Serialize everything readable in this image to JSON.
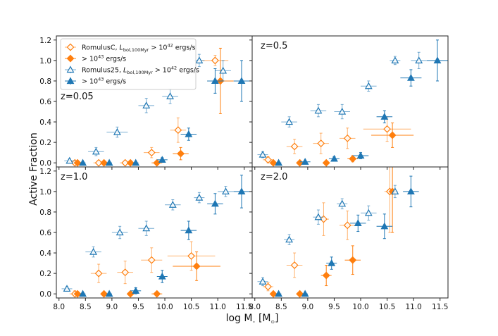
{
  "chart_data": {
    "type": "scatter",
    "ylabel": "Active Fraction",
    "xlabel": "log M",
    "xlabel_sub": "⋆",
    "xlabel_unit_open": " [M",
    "xlabel_unit_sub": "⊙",
    "xlabel_unit_close": "]",
    "xlim": [
      7.95,
      11.65
    ],
    "ylim": [
      -0.04,
      1.24
    ],
    "xticks": [
      "8.0",
      "8.5",
      "9.0",
      "9.5",
      "10.0",
      "10.5",
      "11.0",
      "11.5"
    ],
    "xtick_values": [
      8.0,
      8.5,
      9.0,
      9.5,
      10.0,
      10.5,
      11.0,
      11.5
    ],
    "yticks": [
      "0.0",
      "0.2",
      "0.4",
      "0.6",
      "0.8",
      "1.0",
      "1.2"
    ],
    "ytick_values": [
      0.0,
      0.2,
      0.4,
      0.6,
      0.8,
      1.0,
      1.2
    ],
    "colors": {
      "romulusc": "#ff7f0e",
      "romulus25": "#1f77b4"
    },
    "legend": [
      {
        "series": "romulusc_42",
        "text": "RomulusC, ",
        "math": "L",
        "math_sub": "bol,100Myr",
        "cond": " > 10",
        "cond_sup": "42",
        "tail": " ergs/s"
      },
      {
        "series": "romulusc_43",
        "text": "",
        "math": "",
        "math_sub": "",
        "cond": "> 10",
        "cond_sup": "43",
        "tail": " ergs/s"
      },
      {
        "series": "romulus25_42",
        "text": "Romulus25, ",
        "math": "L",
        "math_sub": "bol,100Myr",
        "cond": " > 10",
        "cond_sup": "42",
        "tail": " ergs/s"
      },
      {
        "series": "romulus25_43",
        "text": "",
        "math": "",
        "math_sub": "",
        "cond": "> 10",
        "cond_sup": "43",
        "tail": " ergs/s"
      }
    ],
    "panels": [
      {
        "label": "z=0.05",
        "series": {
          "romulusc_42": [
            {
              "x": 8.3,
              "y": 0.0,
              "xerr": 0.1,
              "yerr": 0.02
            },
            {
              "x": 8.75,
              "y": 0.0,
              "xerr": 0.1,
              "yerr": 0.02
            },
            {
              "x": 9.25,
              "y": 0.0,
              "xerr": 0.1,
              "yerr": 0.02
            },
            {
              "x": 9.75,
              "y": 0.1,
              "xerr": 0.15,
              "yerr": 0.05
            },
            {
              "x": 10.25,
              "y": 0.32,
              "xerr": 0.15,
              "yerr": 0.12
            },
            {
              "x": 10.95,
              "y": 1.0,
              "xerr": 0.25,
              "yerr": 0.05
            }
          ],
          "romulusc_43": [
            {
              "x": 8.35,
              "y": 0.0,
              "xerr": 0.05,
              "yerr": 0.01
            },
            {
              "x": 8.85,
              "y": 0.0,
              "xerr": 0.05,
              "yerr": 0.01
            },
            {
              "x": 9.35,
              "y": 0.0,
              "xerr": 0.05,
              "yerr": 0.01
            },
            {
              "x": 9.85,
              "y": 0.0,
              "xerr": 0.1,
              "yerr": 0.01
            },
            {
              "x": 10.3,
              "y": 0.09,
              "xerr": 0.15,
              "yerr": 0.06
            },
            {
              "x": 11.05,
              "y": 0.8,
              "xerr": 0.25,
              "yerr": 0.32
            }
          ],
          "romulus25_42": [
            {
              "x": 8.2,
              "y": 0.02,
              "xerr": 0.1,
              "yerr": 0.02
            },
            {
              "x": 8.7,
              "y": 0.11,
              "xerr": 0.15,
              "yerr": 0.04
            },
            {
              "x": 9.1,
              "y": 0.3,
              "xerr": 0.2,
              "yerr": 0.05
            },
            {
              "x": 9.65,
              "y": 0.56,
              "xerr": 0.15,
              "yerr": 0.07
            },
            {
              "x": 10.1,
              "y": 0.65,
              "xerr": 0.15,
              "yerr": 0.07
            },
            {
              "x": 10.65,
              "y": 1.0,
              "xerr": 0.1,
              "yerr": 0.06
            },
            {
              "x": 11.1,
              "y": 0.9,
              "xerr": 0.15,
              "yerr": 0.1
            }
          ],
          "romulus25_43": [
            {
              "x": 8.45,
              "y": 0.0,
              "xerr": 0.05,
              "yerr": 0.01
            },
            {
              "x": 8.95,
              "y": 0.0,
              "xerr": 0.05,
              "yerr": 0.01
            },
            {
              "x": 9.45,
              "y": 0.0,
              "xerr": 0.05,
              "yerr": 0.01
            },
            {
              "x": 9.95,
              "y": 0.03,
              "xerr": 0.1,
              "yerr": 0.02
            },
            {
              "x": 10.45,
              "y": 0.28,
              "xerr": 0.15,
              "yerr": 0.06
            },
            {
              "x": 10.95,
              "y": 0.8,
              "xerr": 0.15,
              "yerr": 0.12
            },
            {
              "x": 11.45,
              "y": 0.8,
              "xerr": 0.15,
              "yerr": 0.2
            }
          ]
        }
      },
      {
        "label": "z=0.5",
        "series": {
          "romulusc_42": [
            {
              "x": 8.25,
              "y": 0.03,
              "xerr": 0.1,
              "yerr": 0.03
            },
            {
              "x": 8.75,
              "y": 0.16,
              "xerr": 0.15,
              "yerr": 0.07
            },
            {
              "x": 9.25,
              "y": 0.19,
              "xerr": 0.15,
              "yerr": 0.1
            },
            {
              "x": 9.75,
              "y": 0.24,
              "xerr": 0.15,
              "yerr": 0.1
            },
            {
              "x": 10.5,
              "y": 0.33,
              "xerr": 0.45,
              "yerr": 0.12
            }
          ],
          "romulusc_43": [
            {
              "x": 8.35,
              "y": 0.0,
              "xerr": 0.05,
              "yerr": 0.01
            },
            {
              "x": 8.85,
              "y": 0.0,
              "xerr": 0.05,
              "yerr": 0.01
            },
            {
              "x": 9.35,
              "y": 0.0,
              "xerr": 0.05,
              "yerr": 0.01
            },
            {
              "x": 9.85,
              "y": 0.04,
              "xerr": 0.1,
              "yerr": 0.03
            },
            {
              "x": 10.6,
              "y": 0.27,
              "xerr": 0.4,
              "yerr": 0.12
            }
          ],
          "romulus25_42": [
            {
              "x": 8.15,
              "y": 0.08,
              "xerr": 0.1,
              "yerr": 0.03
            },
            {
              "x": 8.65,
              "y": 0.4,
              "xerr": 0.15,
              "yerr": 0.05
            },
            {
              "x": 9.2,
              "y": 0.51,
              "xerr": 0.15,
              "yerr": 0.06
            },
            {
              "x": 9.65,
              "y": 0.5,
              "xerr": 0.15,
              "yerr": 0.07
            },
            {
              "x": 10.15,
              "y": 0.75,
              "xerr": 0.15,
              "yerr": 0.05
            },
            {
              "x": 10.65,
              "y": 1.0,
              "xerr": 0.1,
              "yerr": 0.04
            },
            {
              "x": 11.1,
              "y": 1.0,
              "xerr": 0.15,
              "yerr": 0.08
            }
          ],
          "romulus25_43": [
            {
              "x": 8.45,
              "y": 0.0,
              "xerr": 0.05,
              "yerr": 0.01
            },
            {
              "x": 8.95,
              "y": 0.01,
              "xerr": 0.1,
              "yerr": 0.01
            },
            {
              "x": 9.5,
              "y": 0.04,
              "xerr": 0.1,
              "yerr": 0.02
            },
            {
              "x": 10.0,
              "y": 0.07,
              "xerr": 0.15,
              "yerr": 0.03
            },
            {
              "x": 10.45,
              "y": 0.45,
              "xerr": 0.15,
              "yerr": 0.06
            },
            {
              "x": 10.95,
              "y": 0.83,
              "xerr": 0.2,
              "yerr": 0.08
            },
            {
              "x": 11.45,
              "y": 1.0,
              "xerr": 0.2,
              "yerr": 0.2
            }
          ]
        }
      },
      {
        "label": "z=1.0",
        "series": {
          "romulusc_42": [
            {
              "x": 8.3,
              "y": 0.0,
              "xerr": 0.1,
              "yerr": 0.03
            },
            {
              "x": 8.75,
              "y": 0.2,
              "xerr": 0.15,
              "yerr": 0.09
            },
            {
              "x": 9.25,
              "y": 0.21,
              "xerr": 0.15,
              "yerr": 0.11
            },
            {
              "x": 9.75,
              "y": 0.33,
              "xerr": 0.2,
              "yerr": 0.12
            },
            {
              "x": 10.5,
              "y": 0.37,
              "xerr": 0.45,
              "yerr": 0.14
            }
          ],
          "romulusc_43": [
            {
              "x": 8.35,
              "y": 0.0,
              "xerr": 0.05,
              "yerr": 0.01
            },
            {
              "x": 8.85,
              "y": 0.0,
              "xerr": 0.05,
              "yerr": 0.01
            },
            {
              "x": 9.35,
              "y": 0.0,
              "xerr": 0.05,
              "yerr": 0.01
            },
            {
              "x": 9.85,
              "y": 0.0,
              "xerr": 0.1,
              "yerr": 0.01
            },
            {
              "x": 10.6,
              "y": 0.27,
              "xerr": 0.45,
              "yerr": 0.14
            }
          ],
          "romulus25_42": [
            {
              "x": 8.15,
              "y": 0.05,
              "xerr": 0.1,
              "yerr": 0.02
            },
            {
              "x": 8.65,
              "y": 0.41,
              "xerr": 0.15,
              "yerr": 0.05
            },
            {
              "x": 9.15,
              "y": 0.6,
              "xerr": 0.15,
              "yerr": 0.06
            },
            {
              "x": 9.65,
              "y": 0.64,
              "xerr": 0.15,
              "yerr": 0.07
            },
            {
              "x": 10.15,
              "y": 0.87,
              "xerr": 0.15,
              "yerr": 0.05
            },
            {
              "x": 10.65,
              "y": 0.94,
              "xerr": 0.1,
              "yerr": 0.05
            },
            {
              "x": 11.15,
              "y": 1.0,
              "xerr": 0.15,
              "yerr": 0.05
            }
          ],
          "romulus25_43": [
            {
              "x": 8.45,
              "y": 0.0,
              "xerr": 0.05,
              "yerr": 0.01
            },
            {
              "x": 8.95,
              "y": 0.0,
              "xerr": 0.05,
              "yerr": 0.01
            },
            {
              "x": 9.45,
              "y": 0.03,
              "xerr": 0.1,
              "yerr": 0.03
            },
            {
              "x": 9.95,
              "y": 0.17,
              "xerr": 0.1,
              "yerr": 0.06
            },
            {
              "x": 10.45,
              "y": 0.62,
              "xerr": 0.15,
              "yerr": 0.09
            },
            {
              "x": 10.95,
              "y": 0.88,
              "xerr": 0.15,
              "yerr": 0.1
            },
            {
              "x": 11.45,
              "y": 1.0,
              "xerr": 0.15,
              "yerr": 0.16
            }
          ]
        }
      },
      {
        "label": "z=2.0",
        "series": {
          "romulusc_42": [
            {
              "x": 8.25,
              "y": 0.07,
              "xerr": 0.1,
              "yerr": 0.04
            },
            {
              "x": 8.75,
              "y": 0.28,
              "xerr": 0.15,
              "yerr": 0.12
            },
            {
              "x": 9.3,
              "y": 0.73,
              "xerr": 0.1,
              "yerr": 0.16
            },
            {
              "x": 9.75,
              "y": 0.67,
              "xerr": 0.15,
              "yerr": 0.14
            },
            {
              "x": 10.55,
              "y": 1.0,
              "xerr": 0.1,
              "yerr": 0.4
            }
          ],
          "romulusc_43": [
            {
              "x": 8.35,
              "y": 0.0,
              "xerr": 0.05,
              "yerr": 0.01
            },
            {
              "x": 8.85,
              "y": 0.0,
              "xerr": 0.05,
              "yerr": 0.01
            },
            {
              "x": 9.35,
              "y": 0.18,
              "xerr": 0.1,
              "yerr": 0.1
            },
            {
              "x": 9.85,
              "y": 0.33,
              "xerr": 0.15,
              "yerr": 0.14
            },
            {
              "x": 10.6,
              "y": 1.0,
              "xerr": 0.05,
              "yerr": 0.4
            }
          ],
          "romulus25_42": [
            {
              "x": 8.15,
              "y": 0.12,
              "xerr": 0.1,
              "yerr": 0.04
            },
            {
              "x": 8.65,
              "y": 0.53,
              "xerr": 0.1,
              "yerr": 0.05
            },
            {
              "x": 9.2,
              "y": 0.75,
              "xerr": 0.1,
              "yerr": 0.07
            },
            {
              "x": 9.65,
              "y": 0.88,
              "xerr": 0.1,
              "yerr": 0.05
            },
            {
              "x": 10.15,
              "y": 0.79,
              "xerr": 0.15,
              "yerr": 0.07
            },
            {
              "x": 10.65,
              "y": 1.0,
              "xerr": 0.05,
              "yerr": 0.06
            }
          ],
          "romulus25_43": [
            {
              "x": 8.45,
              "y": 0.0,
              "xerr": 0.05,
              "yerr": 0.01
            },
            {
              "x": 8.95,
              "y": 0.0,
              "xerr": 0.05,
              "yerr": 0.01
            },
            {
              "x": 9.45,
              "y": 0.3,
              "xerr": 0.1,
              "yerr": 0.06
            },
            {
              "x": 9.95,
              "y": 0.69,
              "xerr": 0.15,
              "yerr": 0.08
            },
            {
              "x": 10.45,
              "y": 0.66,
              "xerr": 0.15,
              "yerr": 0.12
            },
            {
              "x": 10.95,
              "y": 1.0,
              "xerr": 0.15,
              "yerr": 0.15
            }
          ]
        }
      }
    ]
  }
}
